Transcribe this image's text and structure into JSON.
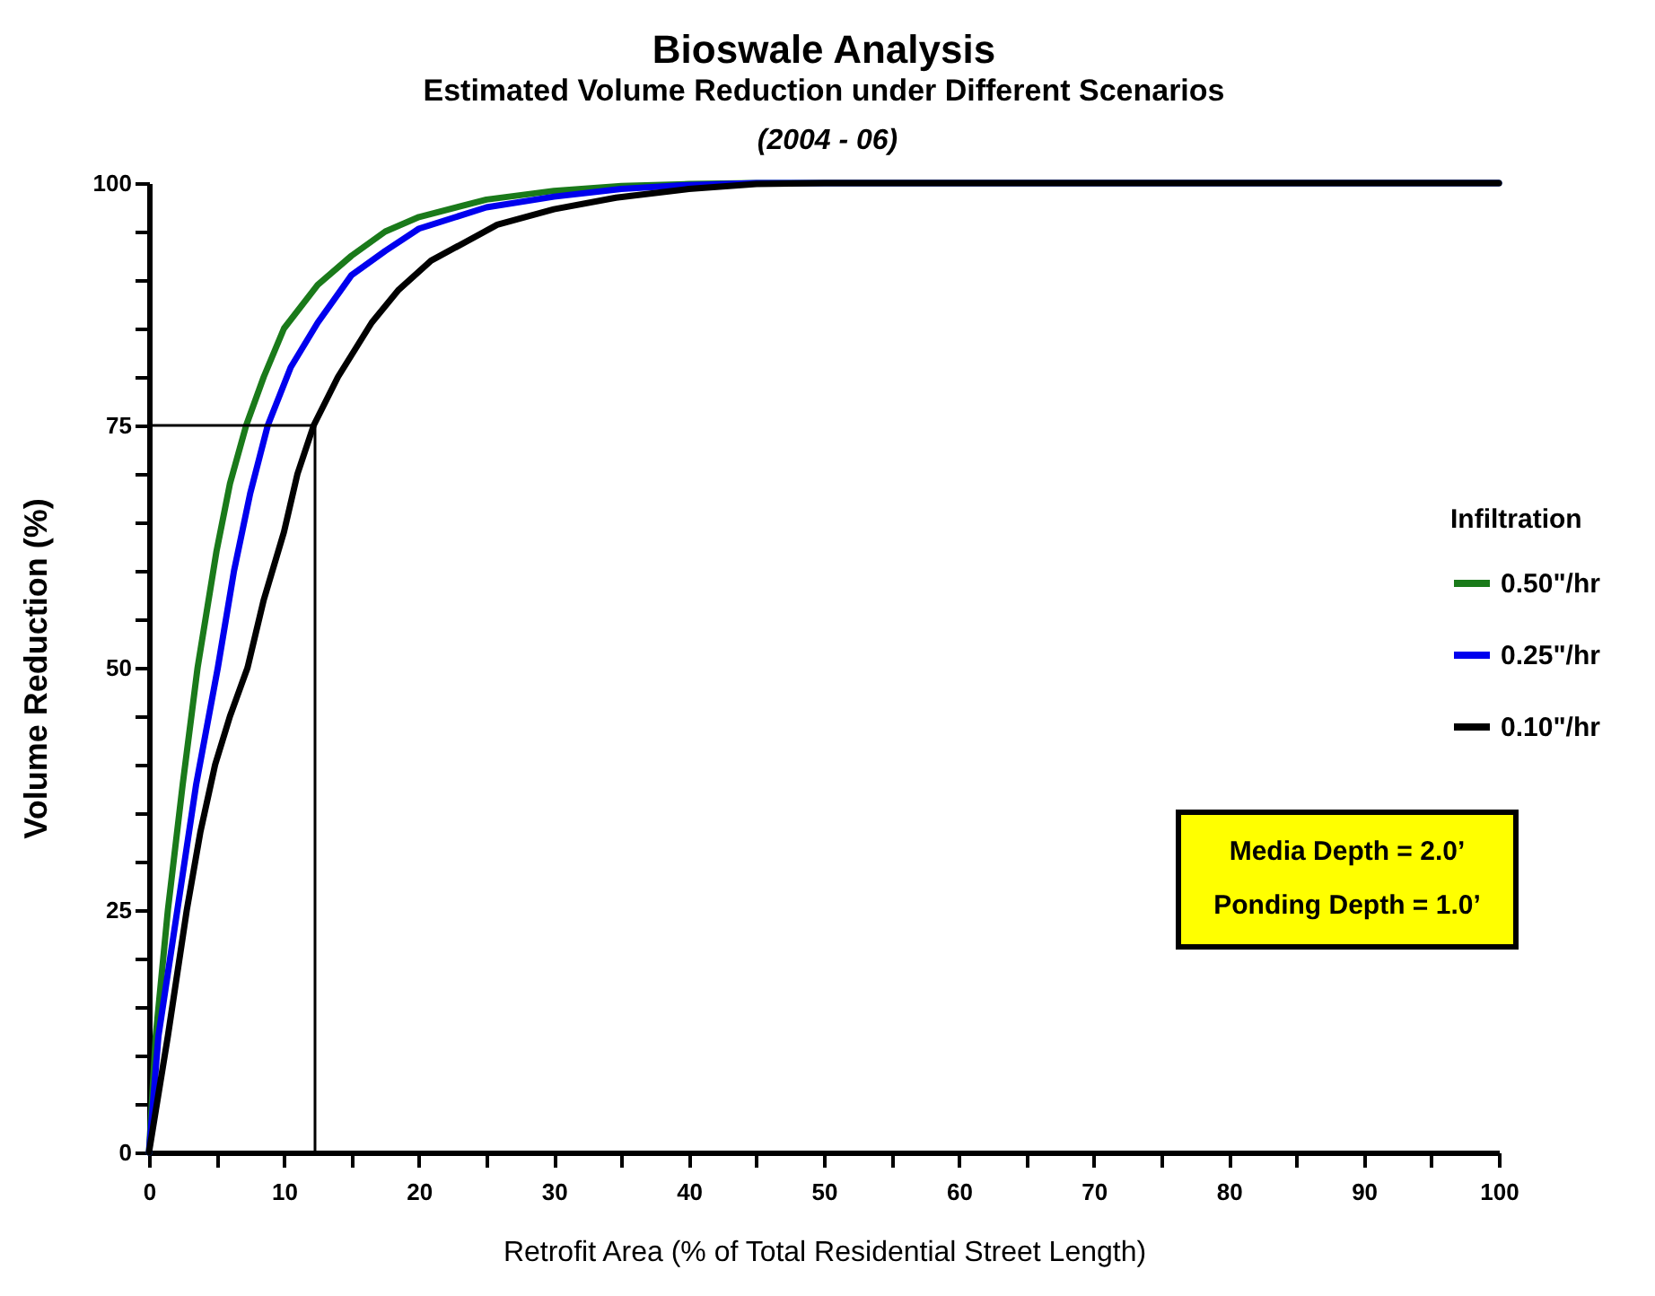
{
  "chart_data": {
    "type": "line",
    "title": "Bioswale Analysis",
    "subtitle": "Estimated Volume Reduction under Different Scenarios",
    "xlabel": "Retrofit Area (% of Total Residential Street Length)",
    "ylabel": "Volume Reduction (%)",
    "legend_title": "Infiltration",
    "legend": "right",
    "annotations": [
      "(2004 - 06)",
      "Media Depth = 2.0’",
      "Ponding Depth = 1.0’"
    ],
    "xlim": [
      0,
      100
    ],
    "ylim": [
      0,
      100
    ],
    "xticks": [
      0,
      {
        "value": 5,
        "label": null
      },
      10,
      {
        "value": 15,
        "label": null
      },
      20,
      {
        "value": 25,
        "label": null
      },
      30,
      {
        "value": 35,
        "label": null
      },
      40,
      {
        "value": 45,
        "label": null
      },
      50,
      {
        "value": 55,
        "label": null
      },
      60,
      {
        "value": 65,
        "label": null
      },
      70,
      {
        "value": 75,
        "label": null
      },
      80,
      {
        "value": 85,
        "label": null
      },
      90,
      {
        "value": 95,
        "label": null
      },
      100
    ],
    "yticks": [
      0,
      {
        "value": 5,
        "label": null
      },
      {
        "value": 10,
        "label": null
      },
      {
        "value": 15,
        "label": null
      },
      {
        "value": 20,
        "label": null
      },
      25,
      {
        "value": 30,
        "label": null
      },
      {
        "value": 35,
        "label": null
      },
      {
        "value": 40,
        "label": null
      },
      {
        "value": 45,
        "label": null
      },
      50,
      {
        "value": 55,
        "label": null
      },
      {
        "value": 60,
        "label": null
      },
      {
        "value": 65,
        "label": null
      },
      {
        "value": 70,
        "label": null
      },
      75,
      {
        "value": 80,
        "label": null
      },
      {
        "value": 85,
        "label": null
      },
      {
        "value": 90,
        "label": null
      },
      {
        "value": 95,
        "label": null
      },
      100
    ],
    "grid": false,
    "line_style": "solid",
    "series": [
      {
        "name": "0.50\"/hr",
        "color": "#1a7a1a",
        "x": [
          0,
          0.5,
          1.4,
          2.5,
          3.6,
          5,
          6,
          7.2,
          8.5,
          10,
          12.5,
          15,
          17.5,
          20,
          25,
          30,
          35,
          40,
          45,
          100
        ],
        "values": [
          0,
          12,
          25,
          38,
          50,
          62,
          69,
          75,
          80,
          85,
          89.5,
          92.5,
          95,
          96.5,
          98.3,
          99.2,
          99.7,
          99.9,
          100,
          100
        ]
      },
      {
        "name": "0.25\"/hr",
        "color": "#0000ee",
        "x": [
          0,
          0.7,
          2.1,
          3.5,
          5.1,
          6.3,
          7.5,
          8.8,
          10.5,
          12.5,
          15,
          17.5,
          20,
          25,
          30,
          35,
          40,
          45,
          100
        ],
        "values": [
          0,
          12,
          25,
          38,
          50,
          60,
          68,
          75,
          81,
          85.6,
          90.5,
          93,
          95.3,
          97.5,
          98.6,
          99.4,
          99.8,
          100,
          100
        ]
      },
      {
        "name": "0.10\"/hr",
        "color": "#000000",
        "x": [
          0,
          1.4,
          2.8,
          3.8,
          4.9,
          6,
          7.3,
          8.5,
          10,
          11,
          12.2,
          14,
          16.5,
          18.5,
          20.9,
          25.8,
          30,
          34.6,
          40,
          45,
          50,
          100
        ],
        "values": [
          0,
          12,
          25,
          33,
          40,
          45,
          50,
          57,
          64,
          70,
          75,
          80,
          85.6,
          89,
          92,
          95.7,
          97.3,
          98.5,
          99.4,
          99.9,
          100,
          100
        ]
      },
      {
        "color": "#000000",
        "x": [
          0,
          12.3,
          12.3
        ],
        "values": [
          75,
          75,
          0
        ]
      }
    ]
  }
}
